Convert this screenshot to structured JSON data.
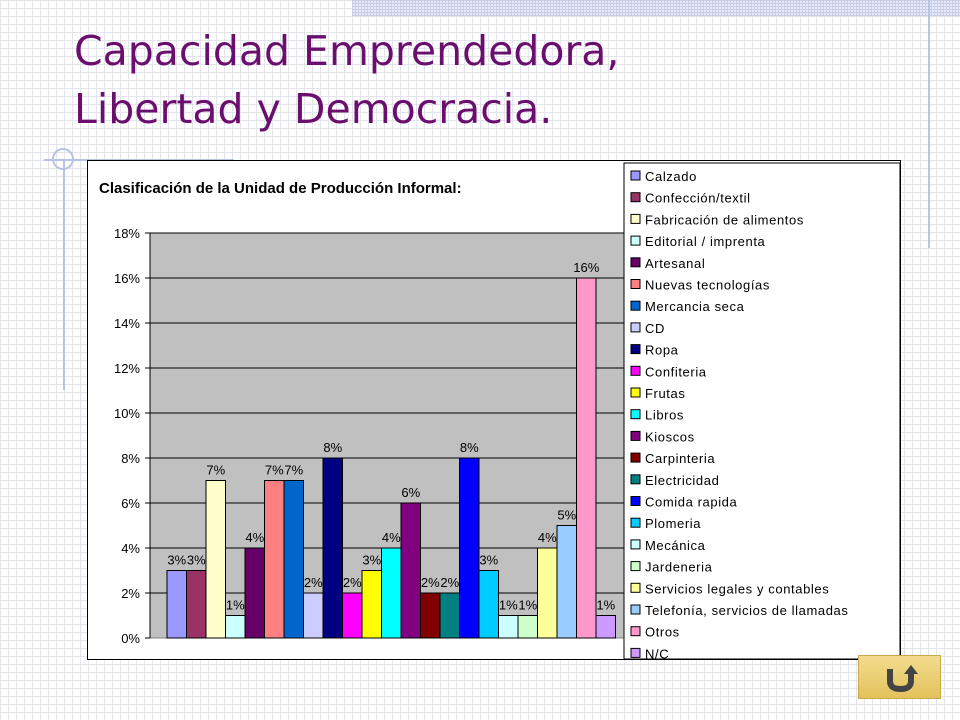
{
  "slide": {
    "title_line1": "Capacidad Emprendedora,",
    "title_line2": "Libertad y Democracia."
  },
  "nav_button": {
    "icon": "return-arrow-icon"
  },
  "chart_data": {
    "type": "bar",
    "title": "Clasificación de la Unidad de Producción Informal:",
    "xlabel": "",
    "ylabel": "",
    "ylim": [
      0,
      18
    ],
    "yticks": [
      "0%",
      "2%",
      "4%",
      "6%",
      "8%",
      "10%",
      "12%",
      "14%",
      "16%",
      "18%"
    ],
    "plot_background": "#c0c0c0",
    "grid": true,
    "legend_position": "right",
    "series": [
      {
        "name": "Calzado",
        "value": 3,
        "label": "3%",
        "color": "#9999ff"
      },
      {
        "name": "Confección/textil",
        "value": 3,
        "label": "3%",
        "color": "#993366"
      },
      {
        "name": "Fabricación de alimentos",
        "value": 7,
        "label": "7%",
        "color": "#ffffcc"
      },
      {
        "name": "Editorial / imprenta",
        "value": 1,
        "label": "1%",
        "color": "#ccffff"
      },
      {
        "name": "Artesanal",
        "value": 4,
        "label": "4%",
        "color": "#660066"
      },
      {
        "name": "Nuevas tecnologías",
        "value": 7,
        "label": "7%",
        "color": "#ff8080"
      },
      {
        "name": "Mercancia seca",
        "value": 7,
        "label": "7%",
        "color": "#0066cc"
      },
      {
        "name": "CD",
        "value": 2,
        "label": "2%",
        "color": "#ccccff"
      },
      {
        "name": "Ropa",
        "value": 8,
        "label": "8%",
        "color": "#000080"
      },
      {
        "name": "Confiteria",
        "value": 2,
        "label": "2%",
        "color": "#ff00ff"
      },
      {
        "name": "Frutas",
        "value": 3,
        "label": "3%",
        "color": "#ffff00"
      },
      {
        "name": "Libros",
        "value": 4,
        "label": "4%",
        "color": "#00ffff"
      },
      {
        "name": "Kioscos",
        "value": 6,
        "label": "6%",
        "color": "#800080"
      },
      {
        "name": "Carpinteria",
        "value": 2,
        "label": "2%",
        "color": "#800000"
      },
      {
        "name": "Electricidad",
        "value": 2,
        "label": "2%",
        "color": "#008080"
      },
      {
        "name": "Comida rapida",
        "value": 8,
        "label": "8%",
        "color": "#0000ff"
      },
      {
        "name": "Plomeria",
        "value": 3,
        "label": "3%",
        "color": "#00ccff"
      },
      {
        "name": "Mecánica",
        "value": 1,
        "label": "1%",
        "color": "#ccffff"
      },
      {
        "name": "Jardeneria",
        "value": 1,
        "label": "1%",
        "color": "#ccffcc"
      },
      {
        "name": "Servicios legales y contables",
        "value": 4,
        "label": "4%",
        "color": "#ffff99"
      },
      {
        "name": "Telefonía, servicios de llamadas",
        "value": 5,
        "label": "5%",
        "color": "#99ccff"
      },
      {
        "name": "Otros",
        "value": 16,
        "label": "16%",
        "color": "#ff99cc"
      },
      {
        "name": "N/C",
        "value": 1,
        "label": "1%",
        "color": "#cc99ff"
      }
    ]
  }
}
